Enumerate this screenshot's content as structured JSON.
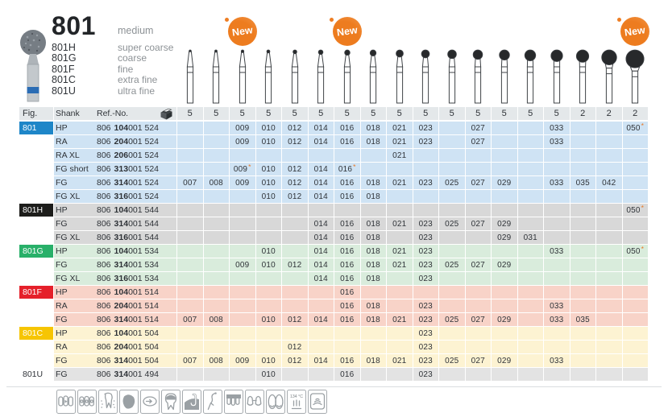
{
  "product": {
    "number": "801",
    "grit": "medium",
    "variants": [
      {
        "code": "801H",
        "grit": "super coarse"
      },
      {
        "code": "801G",
        "grit": "coarse"
      },
      {
        "code": "801F",
        "grit": "fine"
      },
      {
        "code": "801C",
        "grit": "extra fine"
      },
      {
        "code": "801U",
        "grit": "ultra fine"
      }
    ]
  },
  "new_badges": {
    "label": "New",
    "size_columns": [
      "009",
      "016",
      "050"
    ]
  },
  "table": {
    "headers": {
      "fig": "Fig.",
      "shank": "Shank",
      "ref_no": "Ref.-No."
    },
    "sizes": [
      "007",
      "008",
      "009",
      "010",
      "012",
      "014",
      "016",
      "018",
      "021",
      "023",
      "025",
      "027",
      "029",
      "031",
      "033",
      "035",
      "042",
      "050"
    ],
    "pack_quantities": [
      "5",
      "5",
      "5",
      "5",
      "5",
      "5",
      "5",
      "5",
      "5",
      "5",
      "5",
      "5",
      "5",
      "5",
      "5",
      "2",
      "2",
      "2"
    ],
    "sections": [
      {
        "fig": "801",
        "fig_bg": "#1e86c8",
        "fig_text_color": "#ffffff",
        "row_bg": "#cfe3f4",
        "rows": [
          {
            "shank": "HP",
            "ref": {
              "prefix": "806",
              "bold": "104",
              "suffix": "001 524"
            },
            "values": [
              {
                "size": "009"
              },
              {
                "size": "010"
              },
              {
                "size": "012"
              },
              {
                "size": "014"
              },
              {
                "size": "016"
              },
              {
                "size": "018"
              },
              {
                "size": "021"
              },
              {
                "size": "023"
              },
              {
                "size": "027"
              },
              {
                "size": "033"
              },
              {
                "size": "050",
                "new": true
              }
            ]
          },
          {
            "shank": "RA",
            "ref": {
              "prefix": "806",
              "bold": "204",
              "suffix": "001 524"
            },
            "values": [
              {
                "size": "009"
              },
              {
                "size": "010"
              },
              {
                "size": "012"
              },
              {
                "size": "014"
              },
              {
                "size": "016"
              },
              {
                "size": "018"
              },
              {
                "size": "021"
              },
              {
                "size": "023"
              },
              {
                "size": "027"
              },
              {
                "size": "033"
              }
            ]
          },
          {
            "shank": "RA XL",
            "ref": {
              "prefix": "806",
              "bold": "206",
              "suffix": "001 524"
            },
            "values": [
              {
                "size": "021"
              }
            ]
          },
          {
            "shank": "FG short",
            "ref": {
              "prefix": "806",
              "bold": "313",
              "suffix": "001 524"
            },
            "values": [
              {
                "size": "009",
                "new": true
              },
              {
                "size": "010"
              },
              {
                "size": "012"
              },
              {
                "size": "014"
              },
              {
                "size": "016",
                "new": true
              }
            ]
          },
          {
            "shank": "FG",
            "ref": {
              "prefix": "806",
              "bold": "314",
              "suffix": "001 524"
            },
            "values": [
              {
                "size": "007"
              },
              {
                "size": "008"
              },
              {
                "size": "009"
              },
              {
                "size": "010"
              },
              {
                "size": "012"
              },
              {
                "size": "014"
              },
              {
                "size": "016"
              },
              {
                "size": "018"
              },
              {
                "size": "021"
              },
              {
                "size": "023"
              },
              {
                "size": "025"
              },
              {
                "size": "027"
              },
              {
                "size": "029"
              },
              {
                "size": "033"
              },
              {
                "size": "035"
              },
              {
                "size": "042"
              }
            ]
          },
          {
            "shank": "FG XL",
            "ref": {
              "prefix": "806",
              "bold": "316",
              "suffix": "001 524"
            },
            "values": [
              {
                "size": "010"
              },
              {
                "size": "012"
              },
              {
                "size": "014"
              },
              {
                "size": "016"
              },
              {
                "size": "018"
              }
            ]
          }
        ]
      },
      {
        "fig": "801H",
        "fig_bg": "#1d1d1b",
        "fig_text_color": "#ffffff",
        "row_bg": "#d8d8d8",
        "rows": [
          {
            "shank": "HP",
            "ref": {
              "prefix": "806",
              "bold": "104",
              "suffix": "001 544"
            },
            "values": [
              {
                "size": "050",
                "new": true
              }
            ]
          },
          {
            "shank": "FG",
            "ref": {
              "prefix": "806",
              "bold": "314",
              "suffix": "001 544"
            },
            "values": [
              {
                "size": "014"
              },
              {
                "size": "016"
              },
              {
                "size": "018"
              },
              {
                "size": "021"
              },
              {
                "size": "023"
              },
              {
                "size": "025"
              },
              {
                "size": "027"
              },
              {
                "size": "029"
              }
            ]
          },
          {
            "shank": "FG XL",
            "ref": {
              "prefix": "806",
              "bold": "316",
              "suffix": "001 544"
            },
            "values": [
              {
                "size": "014"
              },
              {
                "size": "016"
              },
              {
                "size": "018"
              },
              {
                "size": "023"
              },
              {
                "size": "029"
              },
              {
                "size": "031"
              }
            ]
          }
        ]
      },
      {
        "fig": "801G",
        "fig_bg": "#28b069",
        "fig_text_color": "#ffffff",
        "row_bg": "#d9ecdc",
        "rows": [
          {
            "shank": "HP",
            "ref": {
              "prefix": "806",
              "bold": "104",
              "suffix": "001 534"
            },
            "values": [
              {
                "size": "010"
              },
              {
                "size": "014"
              },
              {
                "size": "016"
              },
              {
                "size": "018"
              },
              {
                "size": "021"
              },
              {
                "size": "023"
              },
              {
                "size": "033"
              },
              {
                "size": "050",
                "new": true
              }
            ]
          },
          {
            "shank": "FG",
            "ref": {
              "prefix": "806",
              "bold": "314",
              "suffix": "001 534"
            },
            "values": [
              {
                "size": "009"
              },
              {
                "size": "010"
              },
              {
                "size": "012"
              },
              {
                "size": "014"
              },
              {
                "size": "016"
              },
              {
                "size": "018"
              },
              {
                "size": "021"
              },
              {
                "size": "023"
              },
              {
                "size": "025"
              },
              {
                "size": "027"
              },
              {
                "size": "029"
              }
            ]
          },
          {
            "shank": "FG XL",
            "ref": {
              "prefix": "806",
              "bold": "316",
              "suffix": "001 534"
            },
            "values": [
              {
                "size": "014"
              },
              {
                "size": "016"
              },
              {
                "size": "018"
              },
              {
                "size": "023"
              }
            ]
          }
        ]
      },
      {
        "fig": "801F",
        "fig_bg": "#e5202a",
        "fig_text_color": "#ffffff",
        "row_bg": "#f8d3c8",
        "rows": [
          {
            "shank": "HP",
            "ref": {
              "prefix": "806",
              "bold": "104",
              "suffix": "001 514"
            },
            "values": [
              {
                "size": "016"
              }
            ]
          },
          {
            "shank": "RA",
            "ref": {
              "prefix": "806",
              "bold": "204",
              "suffix": "001 514"
            },
            "values": [
              {
                "size": "016"
              },
              {
                "size": "018"
              },
              {
                "size": "023"
              },
              {
                "size": "033"
              }
            ]
          },
          {
            "shank": "FG",
            "ref": {
              "prefix": "806",
              "bold": "314",
              "suffix": "001 514"
            },
            "values": [
              {
                "size": "007"
              },
              {
                "size": "008"
              },
              {
                "size": "010"
              },
              {
                "size": "012"
              },
              {
                "size": "014"
              },
              {
                "size": "016"
              },
              {
                "size": "018"
              },
              {
                "size": "021"
              },
              {
                "size": "023"
              },
              {
                "size": "025"
              },
              {
                "size": "027"
              },
              {
                "size": "029"
              },
              {
                "size": "033"
              },
              {
                "size": "035"
              }
            ]
          }
        ]
      },
      {
        "fig": "801C",
        "fig_bg": "#f6c503",
        "fig_text_color": "#ffffff",
        "row_bg": "#fdf3d2",
        "rows": [
          {
            "shank": "HP",
            "ref": {
              "prefix": "806",
              "bold": "104",
              "suffix": "001 504"
            },
            "values": [
              {
                "size": "023"
              }
            ]
          },
          {
            "shank": "RA",
            "ref": {
              "prefix": "806",
              "bold": "204",
              "suffix": "001 504"
            },
            "values": [
              {
                "size": "012"
              },
              {
                "size": "023"
              }
            ]
          },
          {
            "shank": "FG",
            "ref": {
              "prefix": "806",
              "bold": "314",
              "suffix": "001 504"
            },
            "values": [
              {
                "size": "007"
              },
              {
                "size": "008"
              },
              {
                "size": "009"
              },
              {
                "size": "010"
              },
              {
                "size": "012"
              },
              {
                "size": "014"
              },
              {
                "size": "016"
              },
              {
                "size": "018"
              },
              {
                "size": "021"
              },
              {
                "size": "023"
              },
              {
                "size": "025"
              },
              {
                "size": "027"
              },
              {
                "size": "029"
              },
              {
                "size": "033"
              }
            ]
          }
        ]
      },
      {
        "fig": "801U",
        "fig_bg": null,
        "fig_text_color": "#2f3338",
        "row_bg": "#e3e3e3",
        "rows": [
          {
            "shank": "FG",
            "ref": {
              "prefix": "806",
              "bold": "314",
              "suffix": "001 494"
            },
            "values": [
              {
                "size": "010"
              },
              {
                "size": "016"
              },
              {
                "size": "023"
              }
            ]
          }
        ]
      }
    ]
  },
  "footer": {
    "sterilize_label": "134 °C",
    "icons": [
      {
        "name": "anterior-teeth-icon"
      },
      {
        "name": "orthodontic-bands-icon"
      },
      {
        "name": "root-canal-tooth-icon"
      },
      {
        "name": "tooth-silhouette-icon"
      },
      {
        "name": "occlusal-adjustment-icon"
      },
      {
        "name": "crown-prep-molar-icon"
      },
      {
        "name": "filling-removal-icon"
      },
      {
        "name": "scaler-instrument-icon"
      },
      {
        "name": "veneer-bridge-icon"
      },
      {
        "name": "crown-bridge-icon"
      },
      {
        "name": "denture-teeth-icon"
      },
      {
        "name": "sterilizable-134c-icon"
      },
      {
        "name": "ultrasonic-cleaning-icon"
      }
    ]
  },
  "colors": {
    "accent_orange": "#ee7e24",
    "new_marker": "#e87722"
  }
}
